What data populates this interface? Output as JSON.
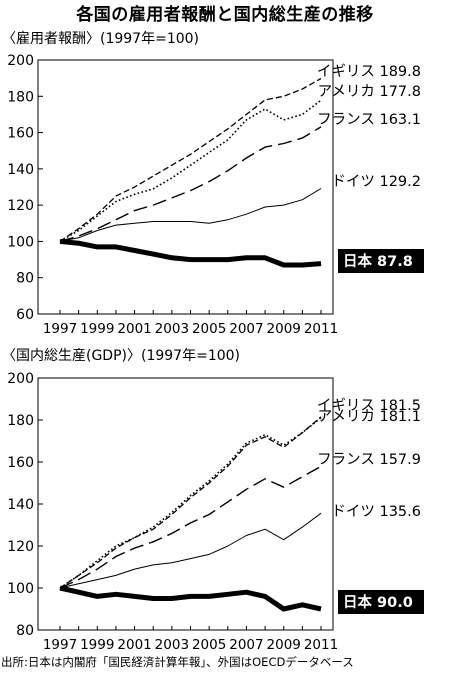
{
  "title": "各国の雇用者報酬と国内総生産の推移",
  "source": "出所:日本は内閣府「国民経済計算年報」、外国はOECDデータベース",
  "chart_data": [
    {
      "type": "line",
      "title": "〈雇用者報酬〉(1997年=100)",
      "xlabel": "",
      "ylabel": "",
      "x": [
        1997,
        1998,
        1999,
        2000,
        2001,
        2002,
        2003,
        2004,
        2005,
        2006,
        2007,
        2008,
        2009,
        2010,
        2011
      ],
      "x_ticks": [
        "1997",
        "1999",
        "2001",
        "2003",
        "2005",
        "2007",
        "2009",
        "2011"
      ],
      "ylim": [
        60,
        200
      ],
      "y_ticks": [
        "60",
        "80",
        "100",
        "120",
        "140",
        "160",
        "180",
        "200"
      ],
      "series": [
        {
          "name": "イギリス",
          "label": "イギリス 189.8",
          "style": "dash-short",
          "values": [
            100,
            107,
            115,
            125,
            130,
            136,
            142,
            148,
            155,
            162,
            170,
            178,
            180,
            184,
            189.8
          ]
        },
        {
          "name": "アメリカ",
          "label": "アメリカ 177.8",
          "style": "dotted",
          "values": [
            100,
            106,
            114,
            122,
            126,
            129,
            135,
            142,
            149,
            156,
            167,
            173,
            167,
            170,
            177.8
          ]
        },
        {
          "name": "フランス",
          "label": "フランス 163.1",
          "style": "dash-long",
          "values": [
            100,
            103,
            107,
            112,
            117,
            120,
            124,
            128,
            133,
            139,
            146,
            152,
            154,
            157,
            163.1
          ]
        },
        {
          "name": "ドイツ",
          "label": "ドイツ 129.2",
          "style": "solid-thin",
          "values": [
            100,
            102,
            106,
            109,
            110,
            111,
            111,
            111,
            110,
            112,
            115,
            119,
            120,
            123,
            129.2
          ]
        },
        {
          "name": "日本",
          "label": "日本 87.8",
          "style": "solid-thick",
          "values": [
            100,
            99,
            97,
            97,
            95,
            93,
            91,
            90,
            90,
            90,
            91,
            91,
            87,
            87,
            87.8
          ]
        }
      ]
    },
    {
      "type": "line",
      "title": "〈国内総生産(GDP)〉(1997年=100)",
      "xlabel": "",
      "ylabel": "",
      "x": [
        1997,
        1998,
        1999,
        2000,
        2001,
        2002,
        2003,
        2004,
        2005,
        2006,
        2007,
        2008,
        2009,
        2010,
        2011
      ],
      "x_ticks": [
        "1997",
        "1999",
        "2001",
        "2003",
        "2005",
        "2007",
        "2009",
        "2011"
      ],
      "ylim": [
        80,
        200
      ],
      "y_ticks": [
        "80",
        "100",
        "120",
        "140",
        "160",
        "180",
        "200"
      ],
      "series": [
        {
          "name": "イギリス",
          "label": "イギリス 181.5",
          "style": "dash-short",
          "values": [
            100,
            106,
            112,
            119,
            124,
            128,
            135,
            143,
            150,
            158,
            168,
            172,
            167,
            174,
            181.5
          ]
        },
        {
          "name": "アメリカ",
          "label": "アメリカ 181.1",
          "style": "dotted",
          "values": [
            100,
            106,
            113,
            120,
            124,
            129,
            136,
            144,
            151,
            159,
            169,
            173,
            168,
            174,
            181.1
          ]
        },
        {
          "name": "フランス",
          "label": "フランス 157.9",
          "style": "dash-long",
          "values": [
            100,
            104,
            109,
            115,
            119,
            122,
            126,
            131,
            135,
            141,
            147,
            152,
            148,
            153,
            157.9
          ]
        },
        {
          "name": "ドイツ",
          "label": "ドイツ 135.6",
          "style": "solid-thin",
          "values": [
            100,
            102,
            104,
            106,
            109,
            111,
            112,
            114,
            116,
            120,
            125,
            128,
            123,
            129,
            135.6
          ]
        },
        {
          "name": "日本",
          "label": "日本 90.0",
          "style": "solid-thick",
          "values": [
            100,
            98,
            96,
            97,
            96,
            95,
            95,
            96,
            96,
            97,
            98,
            96,
            90,
            92,
            90.0
          ]
        }
      ]
    }
  ]
}
